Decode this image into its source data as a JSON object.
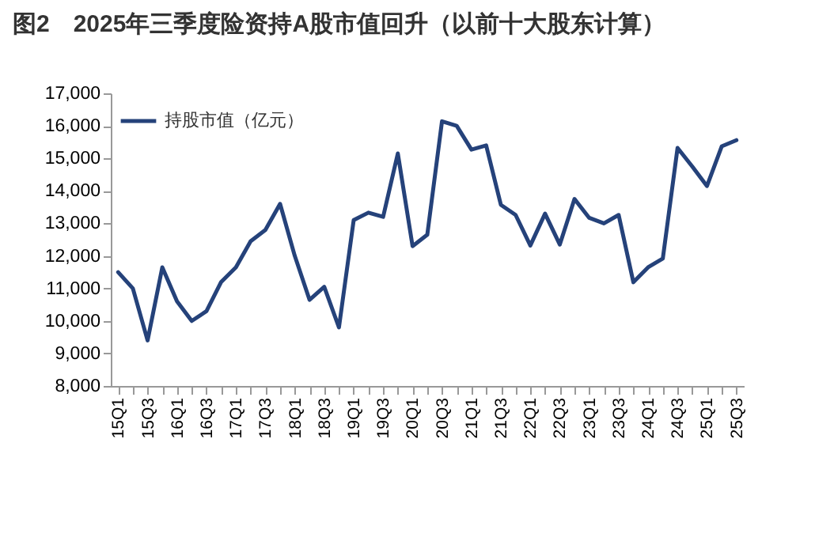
{
  "chart_data": {
    "type": "line",
    "title": "图2　2025年三季度险资持A股市值回升（以前十大股东计算）",
    "categories": [
      "15Q1",
      null,
      "15Q3",
      null,
      "16Q1",
      null,
      "16Q3",
      null,
      "17Q1",
      null,
      "17Q3",
      null,
      "18Q1",
      null,
      "18Q3",
      null,
      "19Q1",
      null,
      "19Q3",
      null,
      "20Q1",
      null,
      "20Q3",
      null,
      "21Q1",
      null,
      "21Q3",
      null,
      "22Q1",
      null,
      "22Q3",
      null,
      "23Q1",
      null,
      "23Q3",
      null,
      "24Q1",
      null,
      "24Q3",
      null,
      "25Q1",
      null,
      "25Q3"
    ],
    "series": [
      {
        "name": "持股市值（亿元）",
        "color": "#25427a",
        "values": [
          11500,
          11000,
          9400,
          11650,
          10600,
          10000,
          10300,
          11200,
          11650,
          12450,
          12800,
          13600,
          12000,
          10650,
          11050,
          9800,
          13100,
          13330,
          13200,
          15150,
          12300,
          12650,
          16140,
          16000,
          15270,
          15400,
          13570,
          13260,
          12320,
          13300,
          12350,
          13750,
          13170,
          13000,
          13260,
          11190,
          11650,
          11920,
          15320,
          14750,
          14150,
          15370,
          15560
        ]
      }
    ],
    "ylim": [
      8000,
      17000
    ],
    "yticks": [
      {
        "value": 8000,
        "label": "8,000"
      },
      {
        "value": 9000,
        "label": "9,000"
      },
      {
        "value": 10000,
        "label": "10,000"
      },
      {
        "value": 11000,
        "label": "11,000"
      },
      {
        "value": 12000,
        "label": "12,000"
      },
      {
        "value": 13000,
        "label": "13,000"
      },
      {
        "value": 14000,
        "label": "14,000"
      },
      {
        "value": 15000,
        "label": "15,000"
      },
      {
        "value": 16000,
        "label": "16,000"
      },
      {
        "value": 17000,
        "label": "17,000"
      }
    ],
    "legend": "top left"
  }
}
